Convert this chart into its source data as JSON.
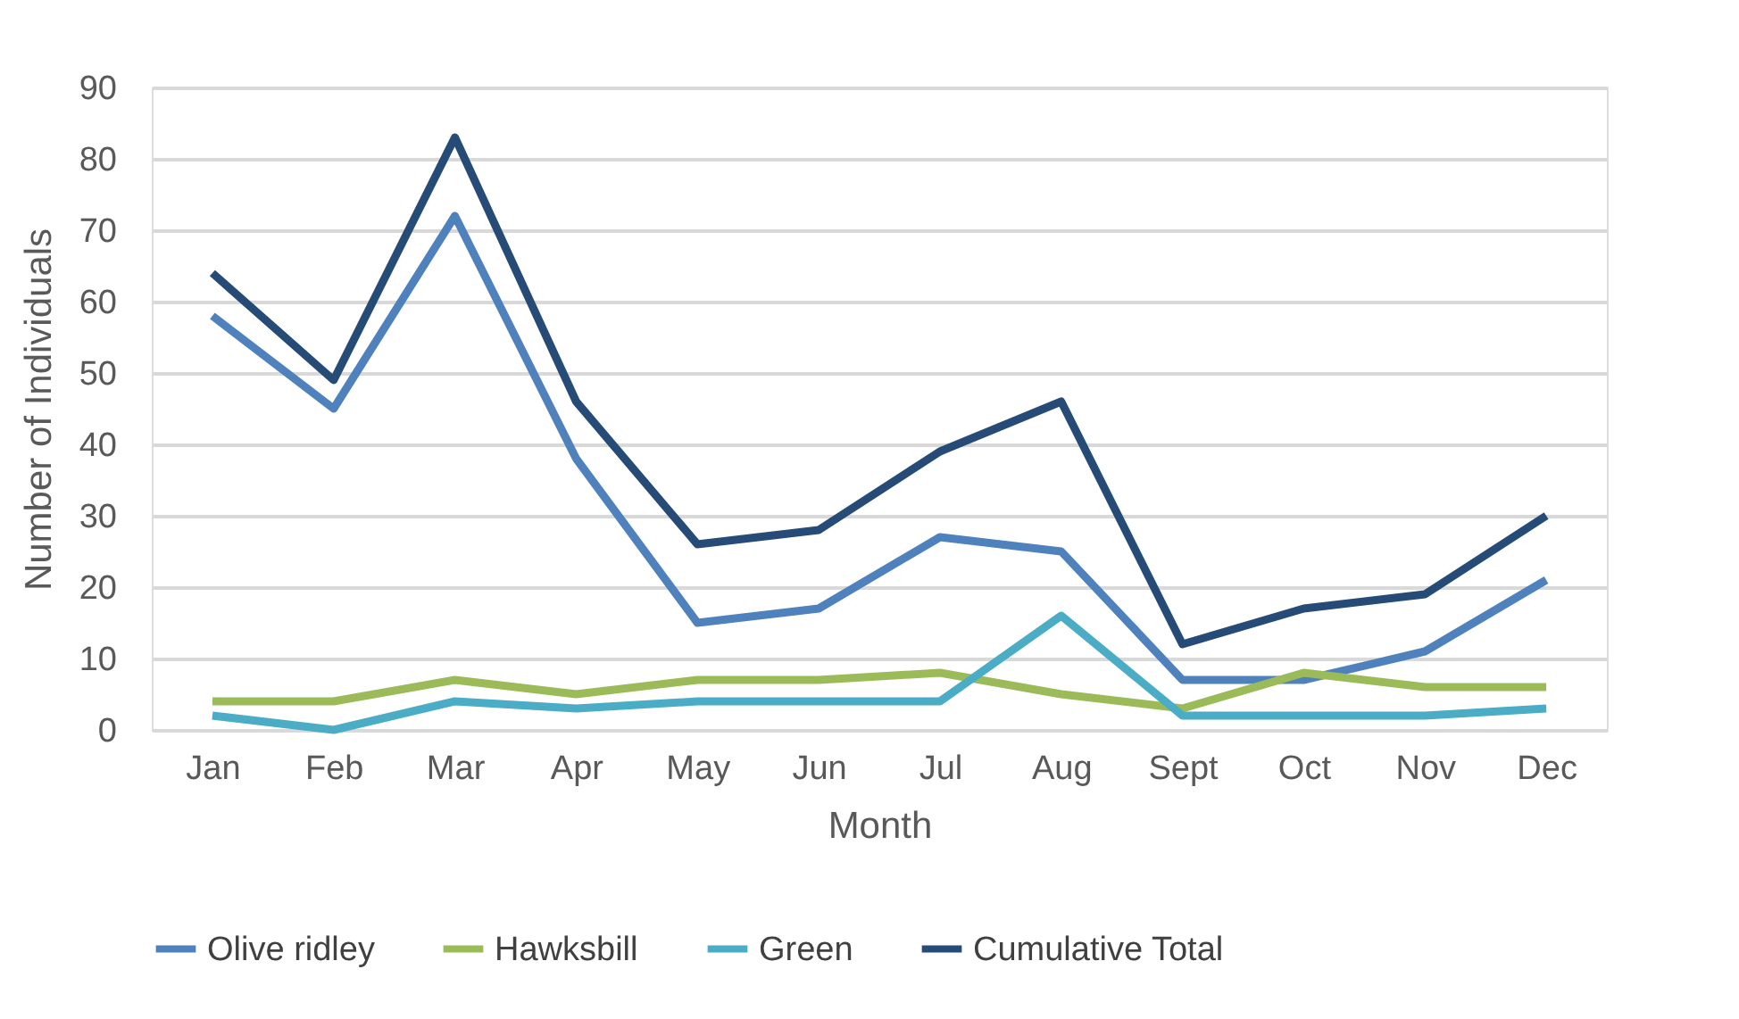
{
  "chart_data": {
    "type": "line",
    "xlabel": "Month",
    "ylabel": "Number of Individuals",
    "categories": [
      "Jan",
      "Feb",
      "Mar",
      "Apr",
      "May",
      "Jun",
      "Jul",
      "Aug",
      "Sept",
      "Oct",
      "Nov",
      "Dec"
    ],
    "series": [
      {
        "name": "Olive ridley",
        "color": "#4f81bd",
        "values": [
          58,
          45,
          72,
          38,
          15,
          17,
          27,
          25,
          7,
          7,
          11,
          21
        ]
      },
      {
        "name": "Hawksbill",
        "color": "#9bbb59",
        "values": [
          4,
          4,
          7,
          5,
          7,
          7,
          8,
          5,
          3,
          8,
          6,
          6
        ]
      },
      {
        "name": "Green",
        "color": "#4bacc6",
        "values": [
          2,
          0,
          4,
          3,
          4,
          4,
          4,
          16,
          2,
          2,
          2,
          3
        ]
      },
      {
        "name": "Cumulative Total",
        "color": "#264b76",
        "values": [
          64,
          49,
          83,
          46,
          26,
          28,
          39,
          46,
          12,
          17,
          19,
          30
        ]
      }
    ],
    "ylim": [
      0,
      90
    ],
    "yticks": [
      0,
      10,
      20,
      30,
      40,
      50,
      60,
      70,
      80,
      90
    ],
    "grid": "y",
    "legend": "bottom",
    "marker": "none",
    "line_style": "solid"
  }
}
